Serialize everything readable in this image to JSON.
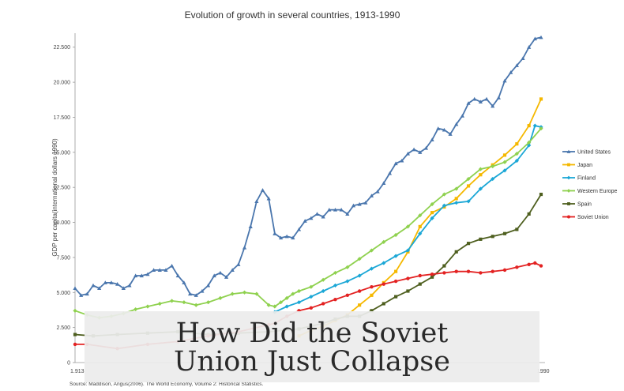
{
  "chart_data": {
    "type": "line",
    "title": "Evolution of growth in several countries, 1913-1990",
    "ylabel": "GDP per capita(international dollars 1990)",
    "xlim": [
      1913,
      1990
    ],
    "ylim": [
      0,
      23500
    ],
    "yticks": [
      0,
      2500,
      5000,
      7500,
      10000,
      12500,
      15000,
      17500,
      20000,
      22500
    ],
    "ytick_labels": [
      "0",
      "2.500",
      "5.000",
      "7.500",
      "10.000",
      "12.500",
      "15.000",
      "17.500",
      "20.000",
      "22.500"
    ],
    "x_tick_labels": [
      "1.913",
      "1990"
    ],
    "legend": "right",
    "grid": false,
    "series": [
      {
        "name": "United States",
        "color": "#4a76ad",
        "marker": "triangle",
        "x": [
          1913,
          1914,
          1915,
          1916,
          1917,
          1918,
          1919,
          1920,
          1921,
          1922,
          1923,
          1924,
          1925,
          1926,
          1927,
          1928,
          1929,
          1930,
          1931,
          1932,
          1933,
          1934,
          1935,
          1936,
          1937,
          1938,
          1939,
          1940,
          1941,
          1942,
          1943,
          1944,
          1945,
          1946,
          1947,
          1948,
          1949,
          1950,
          1951,
          1952,
          1953,
          1954,
          1955,
          1956,
          1957,
          1958,
          1959,
          1960,
          1961,
          1962,
          1963,
          1964,
          1965,
          1966,
          1967,
          1968,
          1969,
          1970,
          1971,
          1972,
          1973,
          1974,
          1975,
          1976,
          1977,
          1978,
          1979,
          1980,
          1981,
          1982,
          1983,
          1984,
          1985,
          1986,
          1987,
          1988,
          1989,
          1990
        ],
        "y": [
          5300,
          4800,
          4900,
          5500,
          5300,
          5700,
          5700,
          5600,
          5300,
          5500,
          6200,
          6200,
          6300,
          6600,
          6600,
          6600,
          6900,
          6200,
          5700,
          4900,
          4800,
          5100,
          5500,
          6200,
          6400,
          6100,
          6600,
          7000,
          8200,
          9700,
          11500,
          12300,
          11700,
          9200,
          8900,
          9000,
          8900,
          9500,
          10100,
          10300,
          10600,
          10400,
          10900,
          10900,
          10900,
          10600,
          11200,
          11300,
          11400,
          11900,
          12200,
          12800,
          13500,
          14200,
          14400,
          14900,
          15200,
          15000,
          15300,
          15900,
          16700,
          16600,
          16300,
          17000,
          17600,
          18500,
          18800,
          18600,
          18800,
          18300,
          18900,
          20100,
          20700,
          21200,
          21700,
          22500,
          23100,
          23200
        ]
      },
      {
        "name": "Japan",
        "color": "#f5b800",
        "marker": "square",
        "x": [
          1950,
          1952,
          1954,
          1956,
          1958,
          1960,
          1962,
          1964,
          1966,
          1968,
          1970,
          1972,
          1974,
          1976,
          1978,
          1980,
          1982,
          1984,
          1986,
          1988,
          1990
        ],
        "y": [
          1900,
          2300,
          2600,
          3000,
          3400,
          4100,
          4800,
          5700,
          6500,
          7900,
          9700,
          10700,
          11100,
          11700,
          12600,
          13400,
          14100,
          14800,
          15600,
          16900,
          18800
        ]
      },
      {
        "name": "Finland",
        "color": "#1ba7d6",
        "marker": "diamond",
        "x": [
          1946,
          1948,
          1950,
          1952,
          1954,
          1956,
          1958,
          1960,
          1962,
          1964,
          1966,
          1968,
          1970,
          1972,
          1974,
          1976,
          1978,
          1980,
          1982,
          1984,
          1986,
          1988,
          1989,
          1990
        ],
        "y": [
          3600,
          4000,
          4300,
          4700,
          5100,
          5500,
          5800,
          6200,
          6700,
          7100,
          7600,
          8000,
          9200,
          10300,
          11200,
          11400,
          11500,
          12400,
          13100,
          13700,
          14400,
          15500,
          16900,
          16800
        ]
      },
      {
        "name": "Western Europe",
        "color": "#8fd14f",
        "marker": "diamond",
        "x": [
          1913,
          1915,
          1917,
          1919,
          1921,
          1923,
          1925,
          1927,
          1929,
          1931,
          1933,
          1935,
          1937,
          1939,
          1941,
          1943,
          1945,
          1946,
          1947,
          1948,
          1949,
          1950,
          1952,
          1954,
          1956,
          1958,
          1960,
          1962,
          1964,
          1966,
          1968,
          1970,
          1972,
          1974,
          1976,
          1978,
          1980,
          1982,
          1984,
          1986,
          1988,
          1990
        ],
        "y": [
          3700,
          3400,
          3200,
          3300,
          3500,
          3800,
          4000,
          4200,
          4400,
          4300,
          4100,
          4300,
          4600,
          4900,
          5000,
          4900,
          4100,
          4000,
          4300,
          4600,
          4900,
          5100,
          5400,
          5900,
          6400,
          6800,
          7400,
          8000,
          8600,
          9100,
          9700,
          10500,
          11300,
          12000,
          12400,
          13100,
          13800,
          14000,
          14300,
          14900,
          15700,
          16700
        ]
      },
      {
        "name": "Spain",
        "color": "#4e5f1f",
        "marker": "square",
        "x": [
          1913,
          1916,
          1920,
          1925,
          1930,
          1935,
          1940,
          1945,
          1950,
          1952,
          1954,
          1956,
          1958,
          1960,
          1962,
          1964,
          1966,
          1968,
          1970,
          1972,
          1974,
          1976,
          1978,
          1980,
          1982,
          1984,
          1986,
          1988,
          1990
        ],
        "y": [
          2000,
          1900,
          2000,
          2100,
          2200,
          2000,
          2100,
          2200,
          2400,
          2600,
          2800,
          3100,
          3300,
          3300,
          3700,
          4200,
          4700,
          5100,
          5600,
          6100,
          6900,
          7900,
          8500,
          8800,
          9000,
          9200,
          9500,
          10600,
          12000
        ]
      },
      {
        "name": "Soviet Union",
        "color": "#e32222",
        "marker": "circle",
        "x": [
          1913,
          1915,
          1920,
          1925,
          1930,
          1935,
          1940,
          1945,
          1946,
          1948,
          1950,
          1952,
          1954,
          1956,
          1958,
          1960,
          1962,
          1964,
          1966,
          1968,
          1970,
          1972,
          1974,
          1976,
          1978,
          1980,
          1982,
          1984,
          1986,
          1988,
          1989,
          1990
        ],
        "y": [
          1300,
          1300,
          1000,
          1300,
          1500,
          1900,
          2200,
          2700,
          2800,
          3300,
          3700,
          3900,
          4200,
          4500,
          4800,
          5100,
          5400,
          5600,
          5800,
          6000,
          6200,
          6300,
          6400,
          6500,
          6500,
          6400,
          6500,
          6600,
          6800,
          7000,
          7100,
          6900
        ]
      }
    ]
  },
  "source_note": "Source: Maddison, Angus(2006). The World Economy, Volume 2: Historical Statistics.",
  "overlay": {
    "line1": "How Did the Soviet",
    "line2": "Union Just Collapse"
  }
}
